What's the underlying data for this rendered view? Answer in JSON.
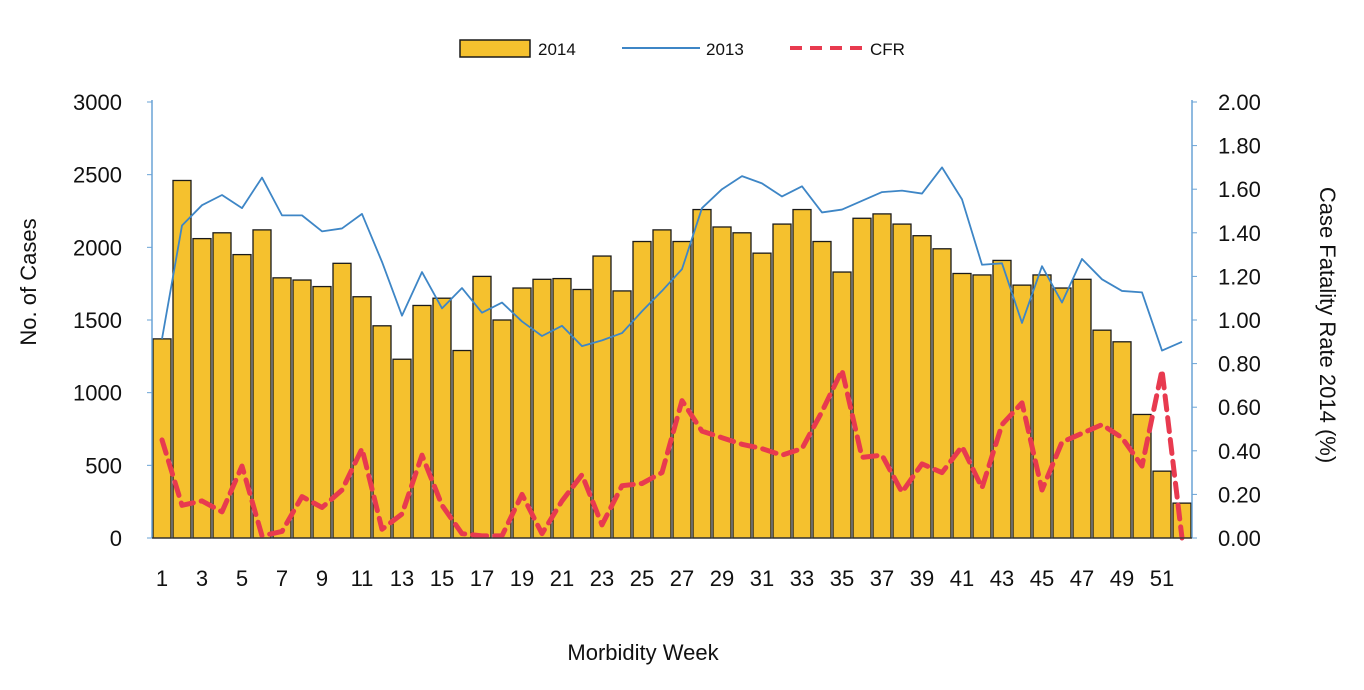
{
  "chart_data": {
    "type": "bar+line",
    "xlabel": "Morbidity Week",
    "ylabel": "No. of Cases",
    "y2label": "Case Fatality Rate 2014 (%)",
    "ylim": [
      0,
      3000
    ],
    "y2lim": [
      0,
      2.0
    ],
    "yticks": [
      "0",
      "500",
      "1000",
      "1500",
      "2000",
      "2500",
      "3000"
    ],
    "y2ticks": [
      "0.00",
      "0.20",
      "0.40",
      "0.60",
      "0.80",
      "1.00",
      "1.20",
      "1.40",
      "1.60",
      "1.80",
      "2.00"
    ],
    "xticks": [
      "1",
      "3",
      "5",
      "7",
      "9",
      "11",
      "13",
      "15",
      "17",
      "19",
      "21",
      "23",
      "25",
      "27",
      "29",
      "31",
      "33",
      "35",
      "37",
      "39",
      "41",
      "43",
      "45",
      "47",
      "49",
      "51"
    ],
    "weeks": [
      1,
      2,
      3,
      4,
      5,
      6,
      7,
      8,
      9,
      10,
      11,
      12,
      13,
      14,
      15,
      16,
      17,
      18,
      19,
      20,
      21,
      22,
      23,
      24,
      25,
      26,
      27,
      28,
      29,
      30,
      31,
      32,
      33,
      34,
      35,
      36,
      37,
      38,
      39,
      40,
      41,
      42,
      43,
      44,
      45,
      46,
      47,
      48,
      49,
      50,
      51,
      52
    ],
    "legend": {
      "bar": "2014",
      "line": "2013",
      "dashed": "CFR"
    },
    "series": [
      {
        "name": "2014",
        "type": "bar",
        "color": "#f5c12e",
        "values": [
          1370,
          2460,
          2060,
          2100,
          1950,
          2120,
          1790,
          1775,
          1730,
          1890,
          1660,
          1460,
          1230,
          1600,
          1650,
          1290,
          1800,
          1500,
          1720,
          1780,
          1785,
          1710,
          1940,
          1700,
          2040,
          2120,
          2040,
          2260,
          2140,
          2100,
          1960,
          2160,
          2260,
          2040,
          1830,
          2200,
          2230,
          2160,
          2080,
          1990,
          1820,
          1810,
          1910,
          1740,
          1810,
          1720,
          1780,
          1430,
          1350,
          850,
          460,
          240
        ]
      },
      {
        "name": "2013",
        "type": "line",
        "color": "#3e86c6",
        "values": [
          1370,
          2150,
          2290,
          2360,
          2270,
          2480,
          2220,
          2220,
          2110,
          2130,
          2230,
          1900,
          1530,
          1830,
          1580,
          1720,
          1550,
          1620,
          1490,
          1390,
          1460,
          1320,
          1360,
          1410,
          1560,
          1700,
          1850,
          2270,
          2400,
          2490,
          2440,
          2350,
          2420,
          2240,
          2260,
          2320,
          2380,
          2390,
          2370,
          2550,
          2330,
          1880,
          1890,
          1480,
          1870,
          1620,
          1920,
          1780,
          1700,
          1690,
          1290,
          1350
        ]
      },
      {
        "name": "CFR",
        "type": "dashed-line",
        "axis": "right",
        "color": "#e83a4f",
        "values": [
          0.45,
          0.15,
          0.17,
          0.12,
          0.33,
          0.01,
          0.03,
          0.19,
          0.14,
          0.22,
          0.41,
          0.04,
          0.11,
          0.38,
          0.15,
          0.02,
          0.01,
          0.01,
          0.2,
          0.02,
          0.17,
          0.29,
          0.06,
          0.24,
          0.25,
          0.3,
          0.63,
          0.49,
          0.46,
          0.43,
          0.41,
          0.38,
          0.41,
          0.58,
          0.77,
          0.37,
          0.38,
          0.21,
          0.34,
          0.3,
          0.42,
          0.23,
          0.52,
          0.62,
          0.22,
          0.44,
          0.48,
          0.52,
          0.46,
          0.33,
          0.77,
          0.0
        ]
      }
    ]
  }
}
